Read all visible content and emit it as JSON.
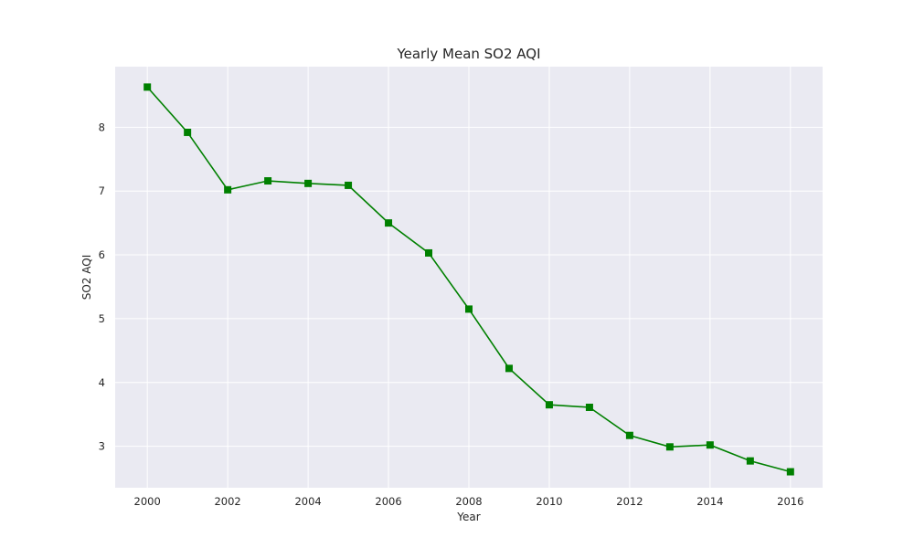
{
  "chart_data": {
    "type": "line",
    "title": "Yearly Mean SO2 AQI",
    "xlabel": "Year",
    "ylabel": "SO2 AQI",
    "xlim": [
      1999.2,
      2016.8
    ],
    "ylim": [
      2.35,
      8.95
    ],
    "xticks": [
      2000,
      2002,
      2004,
      2006,
      2008,
      2010,
      2012,
      2014,
      2016
    ],
    "yticks": [
      3,
      4,
      5,
      6,
      7,
      8
    ],
    "grid": true,
    "colors": {
      "background": "#eaeaf2",
      "grid": "#ffffff",
      "line": "#008000"
    },
    "marker": "square",
    "x": [
      2000,
      2001,
      2002,
      2003,
      2004,
      2005,
      2006,
      2007,
      2008,
      2009,
      2010,
      2011,
      2012,
      2013,
      2014,
      2015,
      2016
    ],
    "values": [
      8.63,
      7.92,
      7.02,
      7.16,
      7.12,
      7.09,
      6.5,
      6.03,
      5.15,
      4.22,
      3.65,
      3.61,
      3.17,
      2.99,
      3.02,
      2.77,
      2.6
    ]
  }
}
